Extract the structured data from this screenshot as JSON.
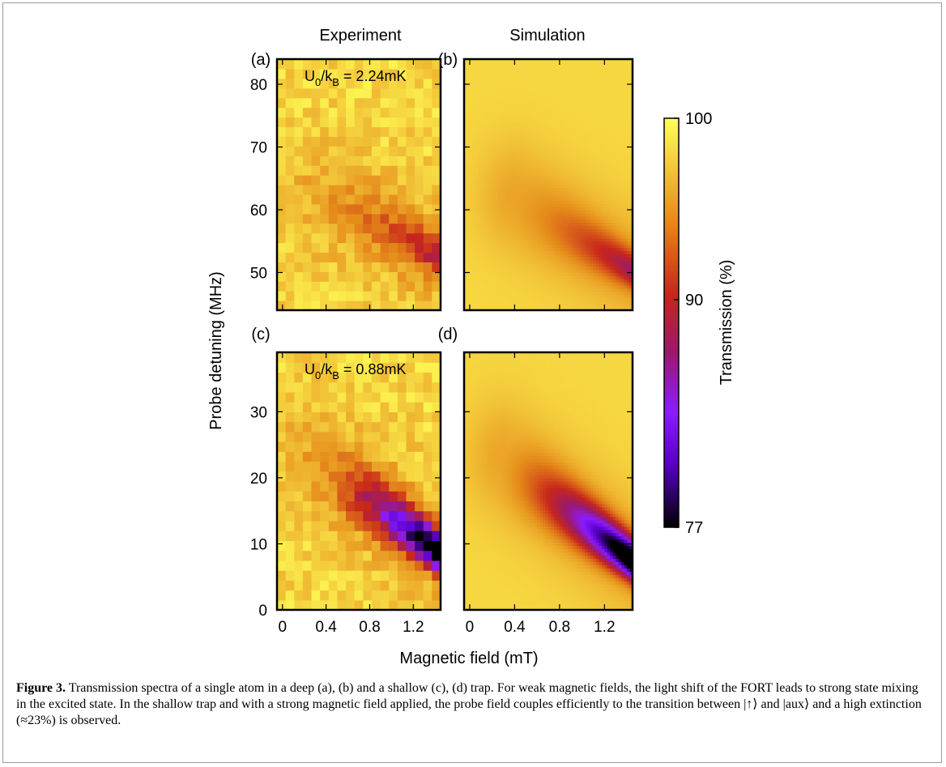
{
  "figure": {
    "column_titles": [
      "Experiment",
      "Simulation"
    ],
    "panel_labels": [
      "(a)",
      "(b)",
      "(c)",
      "(d)"
    ],
    "annotations": {
      "a": {
        "prefix": "U",
        "sub1": "0",
        "mid": "/k",
        "sub2": "B",
        "suffix": " = 2.24mK"
      },
      "c": {
        "prefix": "U",
        "sub1": "0",
        "mid": "/k",
        "sub2": "B",
        "suffix": " = 0.88mK"
      }
    },
    "xlabel": "Magnetic field (mT)",
    "ylabel": "Probe detuning (MHz)",
    "colorbar_label": "Transmission (%)"
  },
  "chart_data": [
    {
      "panel": "a",
      "type": "heatmap",
      "title": "Experiment",
      "x_ticks": [
        "0",
        "0.4",
        "0.8",
        "1.2"
      ],
      "xlim": [
        -0.05,
        1.45
      ],
      "y_ticks": [
        "50",
        "60",
        "70",
        "80"
      ],
      "ylim": [
        44,
        84
      ],
      "trap_depth_mK": 2.24,
      "colormap_range": [
        77,
        100
      ],
      "pixelated": true,
      "feature": {
        "center_start": [
          0.4,
          62
        ],
        "center_end": [
          1.4,
          53
        ],
        "min_transmission": 93
      }
    },
    {
      "panel": "b",
      "type": "heatmap",
      "title": "Simulation",
      "x_ticks": [
        "0",
        "0.4",
        "0.8",
        "1.2"
      ],
      "xlim": [
        -0.05,
        1.45
      ],
      "y_ticks": [
        "50",
        "60",
        "70",
        "80"
      ],
      "ylim": [
        44,
        84
      ],
      "colormap_range": [
        77,
        100
      ],
      "pixelated": false,
      "feature": {
        "center_start": [
          0.4,
          62
        ],
        "center_end": [
          1.4,
          51
        ],
        "min_transmission": 92
      }
    },
    {
      "panel": "c",
      "type": "heatmap",
      "x_ticks": [
        "0",
        "0.4",
        "0.8",
        "1.2"
      ],
      "xlim": [
        -0.05,
        1.45
      ],
      "y_ticks": [
        "0",
        "10",
        "20",
        "30"
      ],
      "ylim": [
        0,
        39
      ],
      "trap_depth_mK": 0.88,
      "colormap_range": [
        77,
        100
      ],
      "pixelated": true,
      "feature": {
        "center_start": [
          0.3,
          23
        ],
        "center_end": [
          1.42,
          9
        ],
        "min_transmission": 77
      }
    },
    {
      "panel": "d",
      "type": "heatmap",
      "x_ticks": [
        "0",
        "0.4",
        "0.8",
        "1.2"
      ],
      "xlim": [
        -0.05,
        1.45
      ],
      "y_ticks": [
        "0",
        "10",
        "20",
        "30"
      ],
      "ylim": [
        0,
        39
      ],
      "colormap_range": [
        77,
        100
      ],
      "pixelated": false,
      "feature": {
        "center_start": [
          0.3,
          23
        ],
        "center_end": [
          1.42,
          8
        ],
        "min_transmission": 77
      }
    },
    {
      "type": "colorbar",
      "ticks": [
        "100",
        "90",
        "77"
      ],
      "values": [
        100,
        90,
        77
      ],
      "label": "Transmission (%)",
      "colors": [
        "#000000",
        "#7a00ff",
        "#c8261b",
        "#e58b1a",
        "#ffff57"
      ]
    }
  ],
  "caption": {
    "label": "Figure 3.",
    "text": " Transmission spectra of a single atom in a deep (a), (b) and a shallow (c), (d) trap. For weak magnetic fields, the light shift of the FORT leads to strong state mixing in the excited state. In the shallow trap and with a strong magnetic field applied, the probe field couples efficiently to the transition between |↑⟩ and |aux⟩ and a high extinction (≈23%) is observed."
  }
}
